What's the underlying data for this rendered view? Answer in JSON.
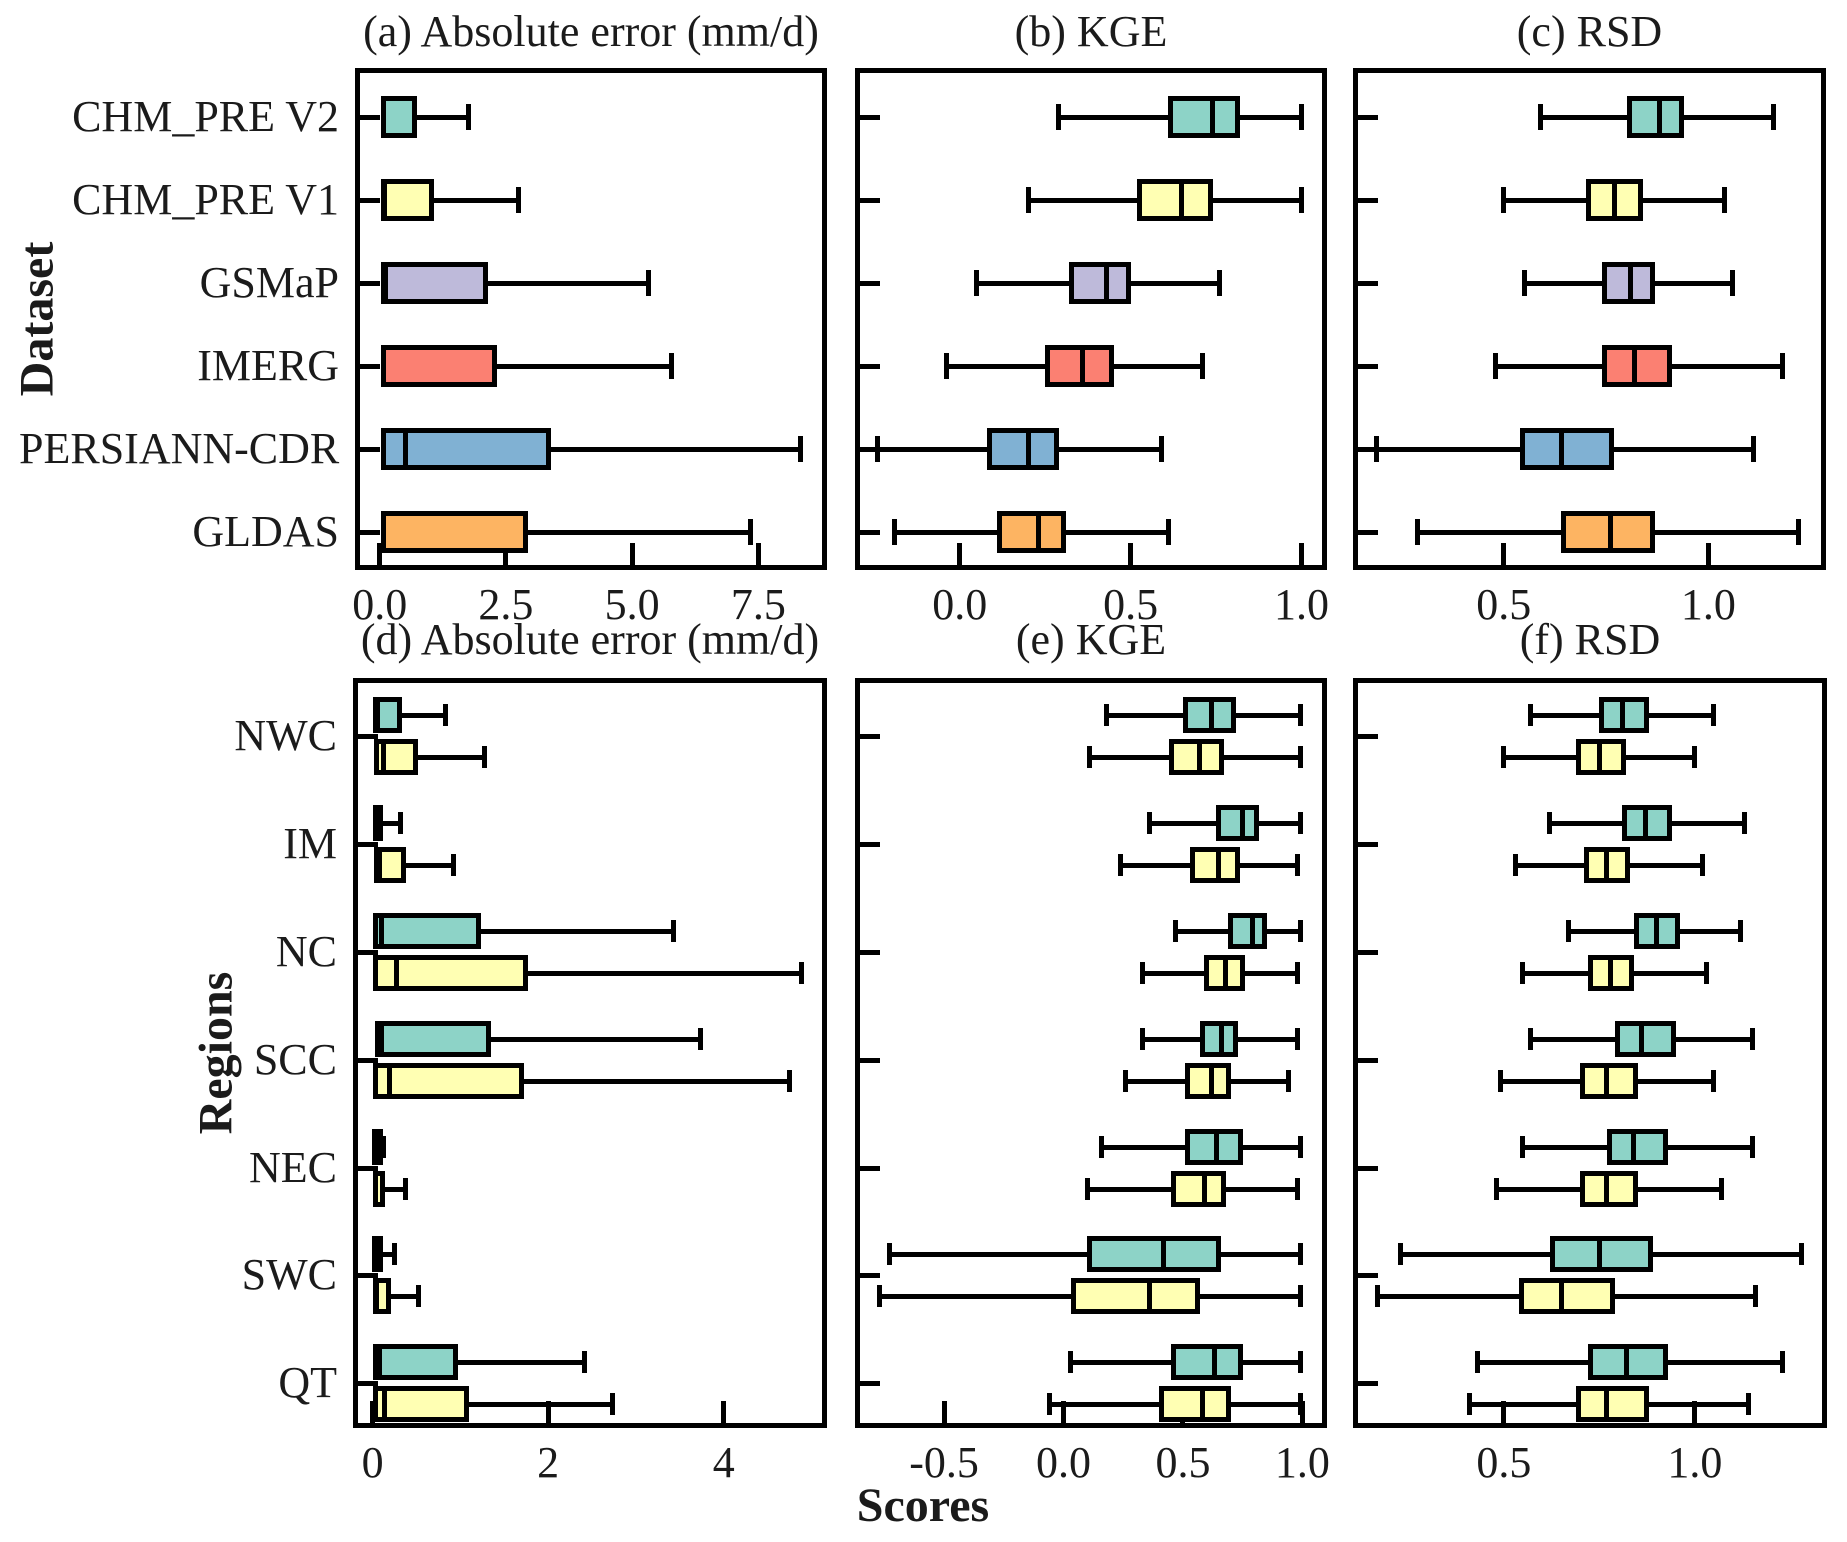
{
  "figure": {
    "xlabel": "Scores",
    "ylabel_top": "Dataset",
    "ylabel_bottom": "Regions",
    "background_color": "#ffffff",
    "line_color": "#000000",
    "text_color": "#1b1b1b"
  },
  "series_colors": {
    "CHM_PRE V2": "#8DD3C7",
    "CHM_PRE V1": "#FFFFB3",
    "GSMaP": "#BEBADA",
    "IMERG": "#FB8072",
    "PERSIANN-CDR": "#80B1D3",
    "GLDAS": "#FDB462"
  },
  "chart_data": [
    {
      "id": "a",
      "type": "boxplot",
      "orientation": "horizontal",
      "title": "(a) Absolute error (mm/d)",
      "grid": false,
      "xlim": [
        -0.39,
        8.76
      ],
      "xticks": [
        {
          "value": 0,
          "label": "0.0"
        },
        {
          "value": 2.5,
          "label": "2.5"
        },
        {
          "value": 5,
          "label": "5.0"
        },
        {
          "value": 7.5,
          "label": "7.5"
        }
      ],
      "show_category_labels": true,
      "categories": [
        "CHM_PRE V2",
        "CHM_PRE V1",
        "GSMaP",
        "IMERG",
        "PERSIANN-CDR",
        "GLDAS"
      ],
      "boxes": [
        {
          "category": "CHM_PRE V2",
          "series": "CHM_PRE V2",
          "whisker_low": 0.02,
          "q1": 0.02,
          "median": 0.08,
          "q3": 0.74,
          "whisker_high": 1.76
        },
        {
          "category": "CHM_PRE V1",
          "series": "CHM_PRE V1",
          "whisker_low": 0.02,
          "q1": 0.02,
          "median": 0.1,
          "q3": 1.07,
          "whisker_high": 2.75
        },
        {
          "category": "GSMaP",
          "series": "GSMaP",
          "whisker_low": 0.02,
          "q1": 0.02,
          "median": 0.12,
          "q3": 2.15,
          "whisker_high": 5.33
        },
        {
          "category": "IMERG",
          "series": "IMERG",
          "whisker_low": 0.02,
          "q1": 0.02,
          "median": 0.08,
          "q3": 2.33,
          "whisker_high": 5.77
        },
        {
          "category": "PERSIANN-CDR",
          "series": "PERSIANN-CDR",
          "whisker_low": 0.02,
          "q1": 0.02,
          "median": 0.52,
          "q3": 3.39,
          "whisker_high": 8.33
        },
        {
          "category": "GLDAS",
          "series": "GLDAS",
          "whisker_low": 0.02,
          "q1": 0.02,
          "median": 0.08,
          "q3": 2.94,
          "whisker_high": 7.34
        }
      ]
    },
    {
      "id": "b",
      "type": "boxplot",
      "orientation": "horizontal",
      "title": "(b) KGE",
      "grid": false,
      "xlim": [
        -0.292,
        1.06
      ],
      "xticks": [
        {
          "value": 0,
          "label": "0.0"
        },
        {
          "value": 0.5,
          "label": "0.5"
        },
        {
          "value": 1,
          "label": "1.0"
        }
      ],
      "show_category_labels": false,
      "categories": [
        "CHM_PRE V2",
        "CHM_PRE V1",
        "GSMaP",
        "IMERG",
        "PERSIANN-CDR",
        "GLDAS"
      ],
      "boxes": [
        {
          "category": "CHM_PRE V2",
          "series": "CHM_PRE V2",
          "whisker_low": 0.29,
          "q1": 0.61,
          "median": 0.74,
          "q3": 0.82,
          "whisker_high": 1.0
        },
        {
          "category": "CHM_PRE V1",
          "series": "CHM_PRE V1",
          "whisker_low": 0.2,
          "q1": 0.52,
          "median": 0.65,
          "q3": 0.74,
          "whisker_high": 1.0
        },
        {
          "category": "GSMaP",
          "series": "GSMaP",
          "whisker_low": 0.05,
          "q1": 0.32,
          "median": 0.43,
          "q3": 0.5,
          "whisker_high": 0.76
        },
        {
          "category": "IMERG",
          "series": "IMERG",
          "whisker_low": -0.04,
          "q1": 0.25,
          "median": 0.36,
          "q3": 0.45,
          "whisker_high": 0.71
        },
        {
          "category": "PERSIANN-CDR",
          "series": "PERSIANN-CDR",
          "whisker_low": -0.24,
          "q1": 0.08,
          "median": 0.2,
          "q3": 0.29,
          "whisker_high": 0.59
        },
        {
          "category": "GLDAS",
          "series": "GLDAS",
          "whisker_low": -0.19,
          "q1": 0.11,
          "median": 0.23,
          "q3": 0.31,
          "whisker_high": 0.61
        }
      ]
    },
    {
      "id": "c",
      "type": "boxplot",
      "orientation": "horizontal",
      "title": "(c) RSD",
      "grid": false,
      "xlim": [
        0.144,
        1.275
      ],
      "xticks": [
        {
          "value": 0.5,
          "label": "0.5"
        },
        {
          "value": 1,
          "label": "1.0"
        }
      ],
      "show_category_labels": false,
      "categories": [
        "CHM_PRE V2",
        "CHM_PRE V1",
        "GSMaP",
        "IMERG",
        "PERSIANN-CDR",
        "GLDAS"
      ],
      "boxes": [
        {
          "category": "CHM_PRE V2",
          "series": "CHM_PRE V2",
          "whisker_low": 0.59,
          "q1": 0.8,
          "median": 0.88,
          "q3": 0.94,
          "whisker_high": 1.16
        },
        {
          "category": "CHM_PRE V1",
          "series": "CHM_PRE V1",
          "whisker_low": 0.5,
          "q1": 0.7,
          "median": 0.77,
          "q3": 0.84,
          "whisker_high": 1.04
        },
        {
          "category": "GSMaP",
          "series": "GSMaP",
          "whisker_low": 0.55,
          "q1": 0.74,
          "median": 0.81,
          "q3": 0.87,
          "whisker_high": 1.06
        },
        {
          "category": "IMERG",
          "series": "IMERG",
          "whisker_low": 0.48,
          "q1": 0.74,
          "median": 0.82,
          "q3": 0.91,
          "whisker_high": 1.18
        },
        {
          "category": "PERSIANN-CDR",
          "series": "PERSIANN-CDR",
          "whisker_low": 0.19,
          "q1": 0.54,
          "median": 0.64,
          "q3": 0.77,
          "whisker_high": 1.11
        },
        {
          "category": "GLDAS",
          "series": "GLDAS",
          "whisker_low": 0.29,
          "q1": 0.64,
          "median": 0.76,
          "q3": 0.87,
          "whisker_high": 1.22
        }
      ]
    },
    {
      "id": "d",
      "type": "boxplot",
      "orientation": "horizontal",
      "title": "(d) Absolute error (mm/d)",
      "grid": false,
      "xlim": [
        -0.167,
        5.12
      ],
      "xticks": [
        {
          "value": 0,
          "label": "0"
        },
        {
          "value": 2,
          "label": "2"
        },
        {
          "value": 4,
          "label": "4"
        }
      ],
      "show_category_labels": true,
      "categories": [
        "NWC",
        "IM",
        "NC",
        "SCC",
        "NEC",
        "SWC",
        "QT"
      ],
      "boxes": [
        {
          "category": "NWC",
          "series": "CHM_PRE V2",
          "whisker_low": 0.0,
          "q1": 0.0,
          "median": 0.06,
          "q3": 0.33,
          "whisker_high": 0.83
        },
        {
          "category": "NWC",
          "series": "CHM_PRE V1",
          "whisker_low": 0.01,
          "q1": 0.01,
          "median": 0.12,
          "q3": 0.52,
          "whisker_high": 1.27
        },
        {
          "category": "IM",
          "series": "CHM_PRE V2",
          "whisker_low": 0.0,
          "q1": 0.0,
          "median": 0.03,
          "q3": 0.12,
          "whisker_high": 0.32
        },
        {
          "category": "IM",
          "series": "CHM_PRE V1",
          "whisker_low": 0.02,
          "q1": 0.02,
          "median": 0.08,
          "q3": 0.38,
          "whisker_high": 0.92
        },
        {
          "category": "NC",
          "series": "CHM_PRE V2",
          "whisker_low": 0.0,
          "q1": 0.0,
          "median": 0.1,
          "q3": 1.23,
          "whisker_high": 3.43
        },
        {
          "category": "NC",
          "series": "CHM_PRE V1",
          "whisker_low": 0.0,
          "q1": 0.0,
          "median": 0.27,
          "q3": 1.77,
          "whisker_high": 4.89
        },
        {
          "category": "SCC",
          "series": "CHM_PRE V2",
          "whisker_low": 0.03,
          "q1": 0.03,
          "median": 0.1,
          "q3": 1.35,
          "whisker_high": 3.74
        },
        {
          "category": "SCC",
          "series": "CHM_PRE V1",
          "whisker_low": 0.0,
          "q1": 0.0,
          "median": 0.19,
          "q3": 1.73,
          "whisker_high": 4.75
        },
        {
          "category": "NEC",
          "series": "CHM_PRE V2",
          "whisker_low": 0.0,
          "q1": 0.0,
          "median": 0.02,
          "q3": 0.09,
          "whisker_high": 0.12
        },
        {
          "category": "NEC",
          "series": "CHM_PRE V1",
          "whisker_low": 0.0,
          "q1": 0.0,
          "median": 0.03,
          "q3": 0.14,
          "whisker_high": 0.37
        },
        {
          "category": "SWC",
          "series": "CHM_PRE V2",
          "whisker_low": 0.0,
          "q1": 0.0,
          "median": 0.02,
          "q3": 0.11,
          "whisker_high": 0.25
        },
        {
          "category": "SWC",
          "series": "CHM_PRE V1",
          "whisker_low": 0.0,
          "q1": 0.0,
          "median": 0.04,
          "q3": 0.21,
          "whisker_high": 0.52
        },
        {
          "category": "QT",
          "series": "CHM_PRE V2",
          "whisker_low": 0.0,
          "q1": 0.0,
          "median": 0.08,
          "q3": 0.97,
          "whisker_high": 2.41
        },
        {
          "category": "QT",
          "series": "CHM_PRE V1",
          "whisker_low": 0.0,
          "q1": 0.0,
          "median": 0.13,
          "q3": 1.1,
          "whisker_high": 2.73
        }
      ]
    },
    {
      "id": "e",
      "type": "boxplot",
      "orientation": "horizontal",
      "title": "(e) KGE",
      "grid": false,
      "xlim": [
        -0.852,
        1.082
      ],
      "xticks": [
        {
          "value": -0.5,
          "label": "-0.5"
        },
        {
          "value": 0,
          "label": "0.0"
        },
        {
          "value": 0.5,
          "label": "0.5"
        },
        {
          "value": 1,
          "label": "1.0"
        }
      ],
      "show_category_labels": false,
      "categories": [
        "NWC",
        "IM",
        "NC",
        "SCC",
        "NEC",
        "SWC",
        "QT"
      ],
      "boxes": [
        {
          "category": "NWC",
          "series": "CHM_PRE V2",
          "whisker_low": 0.18,
          "q1": 0.5,
          "median": 0.62,
          "q3": 0.72,
          "whisker_high": 0.99
        },
        {
          "category": "NWC",
          "series": "CHM_PRE V1",
          "whisker_low": 0.11,
          "q1": 0.44,
          "median": 0.57,
          "q3": 0.67,
          "whisker_high": 0.99
        },
        {
          "category": "IM",
          "series": "CHM_PRE V2",
          "whisker_low": 0.36,
          "q1": 0.64,
          "median": 0.75,
          "q3": 0.82,
          "whisker_high": 0.99
        },
        {
          "category": "IM",
          "series": "CHM_PRE V1",
          "whisker_low": 0.24,
          "q1": 0.53,
          "median": 0.65,
          "q3": 0.74,
          "whisker_high": 0.98
        },
        {
          "category": "NC",
          "series": "CHM_PRE V2",
          "whisker_low": 0.47,
          "q1": 0.69,
          "median": 0.79,
          "q3": 0.85,
          "whisker_high": 0.99
        },
        {
          "category": "NC",
          "series": "CHM_PRE V1",
          "whisker_low": 0.33,
          "q1": 0.59,
          "median": 0.68,
          "q3": 0.76,
          "whisker_high": 0.98
        },
        {
          "category": "SCC",
          "series": "CHM_PRE V2",
          "whisker_low": 0.33,
          "q1": 0.57,
          "median": 0.66,
          "q3": 0.73,
          "whisker_high": 0.98
        },
        {
          "category": "SCC",
          "series": "CHM_PRE V1",
          "whisker_low": 0.26,
          "q1": 0.51,
          "median": 0.62,
          "q3": 0.7,
          "whisker_high": 0.94
        },
        {
          "category": "NEC",
          "series": "CHM_PRE V2",
          "whisker_low": 0.16,
          "q1": 0.51,
          "median": 0.64,
          "q3": 0.75,
          "whisker_high": 0.99
        },
        {
          "category": "NEC",
          "series": "CHM_PRE V1",
          "whisker_low": 0.1,
          "q1": 0.45,
          "median": 0.59,
          "q3": 0.68,
          "whisker_high": 0.98
        },
        {
          "category": "SWC",
          "series": "CHM_PRE V2",
          "whisker_low": -0.73,
          "q1": 0.1,
          "median": 0.42,
          "q3": 0.66,
          "whisker_high": 0.99
        },
        {
          "category": "SWC",
          "series": "CHM_PRE V1",
          "whisker_low": -0.77,
          "q1": 0.03,
          "median": 0.36,
          "q3": 0.57,
          "whisker_high": 0.99
        },
        {
          "category": "QT",
          "series": "CHM_PRE V2",
          "whisker_low": 0.03,
          "q1": 0.45,
          "median": 0.63,
          "q3": 0.75,
          "whisker_high": 0.99
        },
        {
          "category": "QT",
          "series": "CHM_PRE V1",
          "whisker_low": -0.06,
          "q1": 0.4,
          "median": 0.58,
          "q3": 0.7,
          "whisker_high": 0.99
        }
      ]
    },
    {
      "id": "f",
      "type": "boxplot",
      "orientation": "horizontal",
      "title": "(f) RSD",
      "grid": false,
      "xlim": [
        0.118,
        1.333
      ],
      "xticks": [
        {
          "value": 0.5,
          "label": "0.5"
        },
        {
          "value": 1,
          "label": "1.0"
        }
      ],
      "show_category_labels": false,
      "categories": [
        "NWC",
        "IM",
        "NC",
        "SCC",
        "NEC",
        "SWC",
        "QT"
      ],
      "boxes": [
        {
          "category": "NWC",
          "series": "CHM_PRE V2",
          "whisker_low": 0.57,
          "q1": 0.75,
          "median": 0.81,
          "q3": 0.88,
          "whisker_high": 1.05
        },
        {
          "category": "NWC",
          "series": "CHM_PRE V1",
          "whisker_low": 0.5,
          "q1": 0.69,
          "median": 0.75,
          "q3": 0.82,
          "whisker_high": 1.0
        },
        {
          "category": "IM",
          "series": "CHM_PRE V2",
          "whisker_low": 0.62,
          "q1": 0.81,
          "median": 0.87,
          "q3": 0.94,
          "whisker_high": 1.13
        },
        {
          "category": "IM",
          "series": "CHM_PRE V1",
          "whisker_low": 0.53,
          "q1": 0.71,
          "median": 0.77,
          "q3": 0.83,
          "whisker_high": 1.02
        },
        {
          "category": "NC",
          "series": "CHM_PRE V2",
          "whisker_low": 0.67,
          "q1": 0.84,
          "median": 0.9,
          "q3": 0.96,
          "whisker_high": 1.12
        },
        {
          "category": "NC",
          "series": "CHM_PRE V1",
          "whisker_low": 0.55,
          "q1": 0.72,
          "median": 0.78,
          "q3": 0.84,
          "whisker_high": 1.03
        },
        {
          "category": "SCC",
          "series": "CHM_PRE V2",
          "whisker_low": 0.57,
          "q1": 0.79,
          "median": 0.86,
          "q3": 0.95,
          "whisker_high": 1.15
        },
        {
          "category": "SCC",
          "series": "CHM_PRE V1",
          "whisker_low": 0.49,
          "q1": 0.7,
          "median": 0.77,
          "q3": 0.85,
          "whisker_high": 1.05
        },
        {
          "category": "NEC",
          "series": "CHM_PRE V2",
          "whisker_low": 0.55,
          "q1": 0.77,
          "median": 0.84,
          "q3": 0.93,
          "whisker_high": 1.15
        },
        {
          "category": "NEC",
          "series": "CHM_PRE V1",
          "whisker_low": 0.48,
          "q1": 0.7,
          "median": 0.77,
          "q3": 0.85,
          "whisker_high": 1.07
        },
        {
          "category": "SWC",
          "series": "CHM_PRE V2",
          "whisker_low": 0.23,
          "q1": 0.62,
          "median": 0.75,
          "q3": 0.89,
          "whisker_high": 1.28
        },
        {
          "category": "SWC",
          "series": "CHM_PRE V1",
          "whisker_low": 0.17,
          "q1": 0.54,
          "median": 0.65,
          "q3": 0.79,
          "whisker_high": 1.16
        },
        {
          "category": "QT",
          "series": "CHM_PRE V2",
          "whisker_low": 0.43,
          "q1": 0.72,
          "median": 0.82,
          "q3": 0.93,
          "whisker_high": 1.23
        },
        {
          "category": "QT",
          "series": "CHM_PRE V1",
          "whisker_low": 0.41,
          "q1": 0.69,
          "median": 0.77,
          "q3": 0.88,
          "whisker_high": 1.14
        }
      ]
    }
  ]
}
